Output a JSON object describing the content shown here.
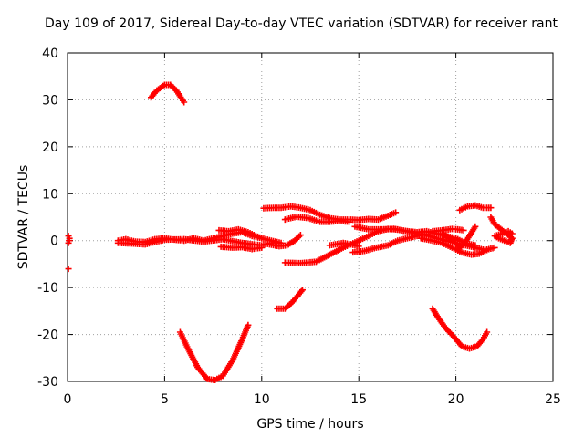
{
  "chart_data": {
    "type": "scatter",
    "title": "Day 109 of 2017, Sidereal Day-to-day VTEC variation (SDTVAR) for receiver rant",
    "xlabel": "GPS time / hours",
    "ylabel": "SDTVAR / TECUs",
    "xlim": [
      0,
      25
    ],
    "ylim": [
      -30,
      40
    ],
    "xticks": [
      0,
      5,
      10,
      15,
      20,
      25
    ],
    "yticks": [
      -30,
      -20,
      -10,
      0,
      10,
      20,
      30,
      40
    ],
    "grid": true,
    "marker": "plus",
    "color": "#ff0000",
    "series": [
      {
        "name": "s1",
        "points": [
          [
            0.05,
            1
          ],
          [
            0.1,
            0.5
          ],
          [
            0.05,
            -0.5
          ],
          [
            0.1,
            0
          ]
        ]
      },
      {
        "name": "s2",
        "points": [
          [
            0.05,
            -6
          ]
        ]
      },
      {
        "name": "s3",
        "points": [
          [
            4.3,
            30.5
          ],
          [
            4.6,
            32
          ],
          [
            5.0,
            33.2
          ],
          [
            5.3,
            33.2
          ],
          [
            5.6,
            32
          ],
          [
            6.0,
            29.5
          ]
        ]
      },
      {
        "name": "s4",
        "points": [
          [
            2.6,
            0
          ],
          [
            3,
            0.3
          ],
          [
            3.5,
            -0.2
          ],
          [
            4,
            -0.3
          ],
          [
            4.5,
            0.3
          ],
          [
            5,
            0.5
          ],
          [
            5.5,
            0.2
          ],
          [
            6,
            0
          ],
          [
            6.5,
            0.5
          ],
          [
            7,
            0
          ],
          [
            7.5,
            0.5
          ],
          [
            8,
            1
          ],
          [
            8.5,
            1.5
          ],
          [
            9,
            1.8
          ],
          [
            9.5,
            1
          ],
          [
            10,
            0.5
          ],
          [
            10.5,
            0
          ],
          [
            11,
            -0.5
          ]
        ]
      },
      {
        "name": "s5",
        "points": [
          [
            2.6,
            -0.5
          ],
          [
            3.2,
            -0.6
          ],
          [
            4,
            -0.8
          ],
          [
            5,
            0.2
          ],
          [
            6,
            0.3
          ],
          [
            7,
            -0.2
          ],
          [
            8,
            0.3
          ],
          [
            9,
            -0.5
          ],
          [
            10,
            -1
          ],
          [
            10.5,
            -0.5
          ]
        ]
      },
      {
        "name": "s6",
        "points": [
          [
            7.8,
            2.2
          ],
          [
            8.3,
            2
          ],
          [
            8.8,
            2.4
          ],
          [
            9.3,
            1.8
          ],
          [
            9.6,
            1.2
          ],
          [
            10,
            0.5
          ]
        ]
      },
      {
        "name": "s7",
        "points": [
          [
            7.9,
            -1.3
          ],
          [
            8.5,
            -1.5
          ],
          [
            9,
            -1.4
          ],
          [
            9.5,
            -1.8
          ],
          [
            10,
            -1.5
          ]
        ]
      },
      {
        "name": "s8",
        "points": [
          [
            10.4,
            -0.8
          ],
          [
            10.9,
            -1.2
          ],
          [
            11.3,
            -1
          ],
          [
            11.7,
            0
          ],
          [
            12,
            1.2
          ]
        ]
      },
      {
        "name": "s9",
        "points": [
          [
            5.8,
            -19.5
          ],
          [
            6.2,
            -23
          ],
          [
            6.7,
            -27
          ],
          [
            7.2,
            -29.5
          ],
          [
            7.6,
            -29.7
          ],
          [
            8.0,
            -28.8
          ],
          [
            8.5,
            -25.5
          ],
          [
            9.0,
            -21
          ],
          [
            9.3,
            -18
          ]
        ]
      },
      {
        "name": "s10",
        "points": [
          [
            10.8,
            -14.5
          ],
          [
            11.2,
            -14.5
          ],
          [
            11.6,
            -13
          ],
          [
            12.1,
            -10.5
          ]
        ]
      },
      {
        "name": "s11",
        "points": [
          [
            10.1,
            6.9
          ],
          [
            10.6,
            7
          ],
          [
            11,
            7
          ],
          [
            11.5,
            7.3
          ],
          [
            12,
            7
          ],
          [
            12.5,
            6.5
          ],
          [
            13,
            5.5
          ],
          [
            13.5,
            4.8
          ],
          [
            14,
            4.5
          ],
          [
            14.5,
            4.5
          ],
          [
            15,
            4.4
          ],
          [
            15.5,
            4.6
          ],
          [
            16,
            4.5
          ],
          [
            16.5,
            5.3
          ],
          [
            16.9,
            6
          ]
        ]
      },
      {
        "name": "s12",
        "points": [
          [
            11.2,
            4.5
          ],
          [
            11.8,
            5.1
          ],
          [
            12.4,
            4.8
          ],
          [
            13,
            4
          ],
          [
            13.5,
            4
          ],
          [
            14,
            4.2
          ],
          [
            14.5,
            4
          ]
        ]
      },
      {
        "name": "s13",
        "points": [
          [
            11.2,
            -4.7
          ],
          [
            12,
            -4.8
          ],
          [
            12.8,
            -4.5
          ],
          [
            13.5,
            -3
          ],
          [
            14.2,
            -1.5
          ],
          [
            15,
            0
          ],
          [
            15.5,
            1
          ],
          [
            16,
            2
          ],
          [
            16.5,
            2.5
          ],
          [
            17,
            2.4
          ]
        ]
      },
      {
        "name": "s14",
        "points": [
          [
            14.8,
            3
          ],
          [
            15.5,
            2.4
          ],
          [
            16.2,
            2.4
          ],
          [
            16.8,
            2.5
          ],
          [
            17.5,
            2
          ],
          [
            18,
            1.8
          ],
          [
            18.5,
            2
          ],
          [
            19,
            1.5
          ],
          [
            19.5,
            1
          ],
          [
            20,
            0.5
          ],
          [
            20.5,
            -0.5
          ],
          [
            21,
            -1
          ]
        ]
      },
      {
        "name": "s15",
        "points": [
          [
            14.7,
            -2.5
          ],
          [
            15.3,
            -2.2
          ],
          [
            15.9,
            -1.5
          ],
          [
            16.5,
            -1
          ],
          [
            17,
            0
          ],
          [
            17.5,
            0.5
          ],
          [
            18,
            1
          ],
          [
            18.5,
            1.4
          ]
        ]
      },
      {
        "name": "s16",
        "points": [
          [
            13.5,
            -1
          ],
          [
            14.2,
            -0.5
          ],
          [
            14.6,
            -0.8
          ],
          [
            15,
            -1.2
          ]
        ]
      },
      {
        "name": "s17",
        "points": [
          [
            16.8,
            2.5
          ],
          [
            17.5,
            2
          ],
          [
            18,
            1.5
          ],
          [
            18.5,
            1.2
          ],
          [
            19,
            0.5
          ],
          [
            19.5,
            0
          ],
          [
            20,
            -0.5
          ],
          [
            20.5,
            -1
          ],
          [
            21,
            -1.5
          ],
          [
            21.5,
            -2
          ],
          [
            22,
            -1.5
          ]
        ]
      },
      {
        "name": "s18",
        "points": [
          [
            18.2,
            0.5
          ],
          [
            18.8,
            0
          ],
          [
            19.3,
            -0.5
          ],
          [
            19.8,
            -1.5
          ],
          [
            20.3,
            -2.5
          ],
          [
            20.8,
            -3
          ],
          [
            21.2,
            -2.8
          ],
          [
            21.6,
            -2
          ]
        ]
      },
      {
        "name": "s19",
        "points": [
          [
            18.8,
            2
          ],
          [
            19.3,
            2.2
          ],
          [
            19.8,
            2.5
          ],
          [
            20.1,
            2.4
          ],
          [
            20.4,
            2.2
          ]
        ]
      },
      {
        "name": "s20",
        "points": [
          [
            19.3,
            1.5
          ],
          [
            19.7,
            0.5
          ],
          [
            20.0,
            -0.5
          ],
          [
            20.2,
            -1.5
          ],
          [
            20.4,
            -0.8
          ],
          [
            20.7,
            1
          ],
          [
            21.0,
            3
          ]
        ]
      },
      {
        "name": "s21",
        "points": [
          [
            20.2,
            6.5
          ],
          [
            20.6,
            7.3
          ],
          [
            21,
            7.5
          ],
          [
            21.4,
            7
          ],
          [
            21.8,
            7
          ]
        ]
      },
      {
        "name": "s22",
        "points": [
          [
            21.8,
            5
          ],
          [
            22.0,
            3.5
          ],
          [
            22.3,
            2.5
          ],
          [
            22.6,
            1.5
          ],
          [
            22.9,
            0.5
          ],
          [
            22.8,
            -0.5
          ],
          [
            22.5,
            0
          ],
          [
            22.2,
            0.5
          ],
          [
            22.0,
            1
          ],
          [
            22.4,
            1.5
          ],
          [
            22.7,
            2
          ],
          [
            22.9,
            1.5
          ]
        ]
      },
      {
        "name": "s23",
        "points": [
          [
            18.8,
            -14.5
          ],
          [
            19.1,
            -16.5
          ],
          [
            19.5,
            -18.8
          ],
          [
            19.9,
            -20.5
          ],
          [
            20.3,
            -22.5
          ],
          [
            20.7,
            -23
          ],
          [
            21.1,
            -22.5
          ],
          [
            21.4,
            -21
          ],
          [
            21.6,
            -19.5
          ]
        ]
      }
    ]
  }
}
